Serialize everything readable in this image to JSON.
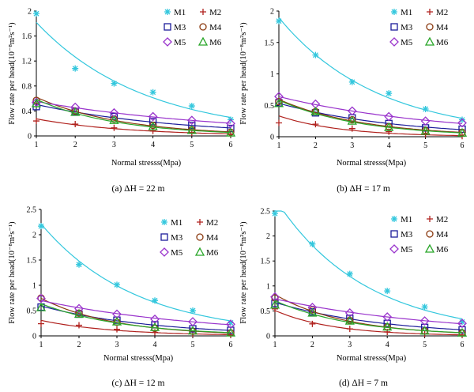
{
  "chart_data": [
    {
      "type": "scatter",
      "caption": "(a) ΔH = 22 m",
      "ylabel": "Flow rate per head(10⁻⁸m²s⁻¹)",
      "xlabel": "Normal stresss(Mpa)",
      "xlim": [
        1,
        6
      ],
      "ylim": [
        0,
        2
      ],
      "xticks": [
        "1",
        "2",
        "3",
        "4",
        "5",
        "6"
      ],
      "yticks": [
        "0",
        "0.4",
        "0.8",
        "1.2",
        "1.6",
        "2"
      ],
      "x": [
        1,
        2,
        3,
        4,
        5,
        6
      ],
      "series": [
        {
          "name": "M1",
          "values": [
            1.96,
            1.08,
            0.84,
            0.7,
            0.48,
            0.26
          ]
        },
        {
          "name": "M2",
          "values": [
            0.24,
            0.19,
            0.13,
            0.08,
            0.05,
            0.03
          ]
        },
        {
          "name": "M3",
          "values": [
            0.47,
            0.39,
            0.31,
            0.23,
            0.17,
            0.12
          ]
        },
        {
          "name": "M4",
          "values": [
            0.57,
            0.4,
            0.27,
            0.17,
            0.1,
            0.06
          ]
        },
        {
          "name": "M5",
          "values": [
            0.54,
            0.46,
            0.37,
            0.31,
            0.25,
            0.2
          ]
        },
        {
          "name": "M6",
          "values": [
            0.52,
            0.38,
            0.25,
            0.15,
            0.09,
            0.05
          ]
        }
      ]
    },
    {
      "type": "scatter",
      "caption": "(b) ΔH = 17 m",
      "ylabel": "Flow rate per head(10⁻⁸m²s⁻¹)",
      "xlabel": "Normal stresss(Mpa)",
      "xlim": [
        1,
        6
      ],
      "ylim": [
        0,
        2
      ],
      "xticks": [
        "1",
        "2",
        "3",
        "4",
        "5",
        "6"
      ],
      "yticks": [
        "0",
        "0.5",
        "1",
        "1.5",
        "2"
      ],
      "x": [
        1,
        2,
        3,
        4,
        5,
        6
      ],
      "series": [
        {
          "name": "M1",
          "values": [
            1.84,
            1.3,
            0.87,
            0.69,
            0.44,
            0.27
          ]
        },
        {
          "name": "M2",
          "values": [
            0.22,
            0.2,
            0.13,
            0.08,
            0.04,
            0.01
          ]
        },
        {
          "name": "M3",
          "values": [
            0.54,
            0.38,
            0.3,
            0.21,
            0.14,
            0.12
          ]
        },
        {
          "name": "M4",
          "values": [
            0.56,
            0.4,
            0.27,
            0.16,
            0.1,
            0.07
          ]
        },
        {
          "name": "M5",
          "values": [
            0.64,
            0.52,
            0.41,
            0.32,
            0.25,
            0.22
          ]
        },
        {
          "name": "M6",
          "values": [
            0.53,
            0.4,
            0.25,
            0.15,
            0.09,
            0.06
          ]
        }
      ]
    },
    {
      "type": "scatter",
      "caption": "(c) ΔH = 12 m",
      "ylabel": "Flow rate per head(10⁻⁸m²s⁻¹)",
      "xlabel": "Normal stresss(Mpa)",
      "xlim": [
        1,
        6
      ],
      "ylim": [
        0,
        2.5
      ],
      "xticks": [
        "1",
        "2",
        "3",
        "4",
        "5",
        "6"
      ],
      "yticks": [
        "0",
        "0.5",
        "1",
        "1.5",
        "2",
        "2.5"
      ],
      "x": [
        1,
        2,
        3,
        4,
        5,
        6
      ],
      "series": [
        {
          "name": "M1",
          "values": [
            2.17,
            1.41,
            1.01,
            0.7,
            0.5,
            0.26
          ]
        },
        {
          "name": "M2",
          "values": [
            0.24,
            0.21,
            0.13,
            0.07,
            0.04,
            0.02
          ]
        },
        {
          "name": "M3",
          "values": [
            0.57,
            0.43,
            0.31,
            0.22,
            0.14,
            0.11
          ]
        },
        {
          "name": "M4",
          "values": [
            0.75,
            0.45,
            0.27,
            0.15,
            0.09,
            0.06
          ]
        },
        {
          "name": "M5",
          "values": [
            0.74,
            0.54,
            0.43,
            0.33,
            0.28,
            0.23
          ]
        },
        {
          "name": "M6",
          "values": [
            0.56,
            0.43,
            0.28,
            0.17,
            0.1,
            0.06
          ]
        }
      ]
    },
    {
      "type": "scatter",
      "caption": "(d) ΔH = 7 m",
      "ylabel": "Flow rate per head(10⁻⁸m²s⁻¹)",
      "xlabel": "Normal stresss(Mpa)",
      "xlim": [
        1,
        6
      ],
      "ylim": [
        0,
        2.5
      ],
      "xticks": [
        "1",
        "2",
        "3",
        "4",
        "5",
        "6"
      ],
      "yticks": [
        "0",
        "0.5",
        "1",
        "1.5",
        "2",
        "2.5"
      ],
      "x": [
        1,
        2,
        3,
        4,
        5,
        6
      ],
      "series": [
        {
          "name": "M1",
          "values": [
            2.45,
            1.84,
            1.24,
            0.9,
            0.58,
            0.28
          ]
        },
        {
          "name": "M2",
          "values": [
            0.54,
            0.24,
            0.14,
            0.08,
            0.04,
            0.02
          ]
        },
        {
          "name": "M3",
          "values": [
            0.65,
            0.48,
            0.35,
            0.25,
            0.17,
            0.12
          ]
        },
        {
          "name": "M4",
          "values": [
            0.76,
            0.52,
            0.31,
            0.18,
            0.1,
            0.06
          ]
        },
        {
          "name": "M5",
          "values": [
            0.78,
            0.57,
            0.46,
            0.38,
            0.3,
            0.25
          ]
        },
        {
          "name": "M6",
          "values": [
            0.62,
            0.46,
            0.3,
            0.18,
            0.1,
            0.06
          ]
        }
      ]
    }
  ],
  "styles": {
    "M1": {
      "color": "#33c7dd",
      "marker": "asterisk"
    },
    "M2": {
      "color": "#b0211d",
      "marker": "plus"
    },
    "M3": {
      "color": "#1c1c9a",
      "marker": "square"
    },
    "M4": {
      "color": "#8b3a10",
      "marker": "circle"
    },
    "M5": {
      "color": "#9933cc",
      "marker": "diamond"
    },
    "M6": {
      "color": "#2aa62a",
      "marker": "triangle"
    }
  }
}
